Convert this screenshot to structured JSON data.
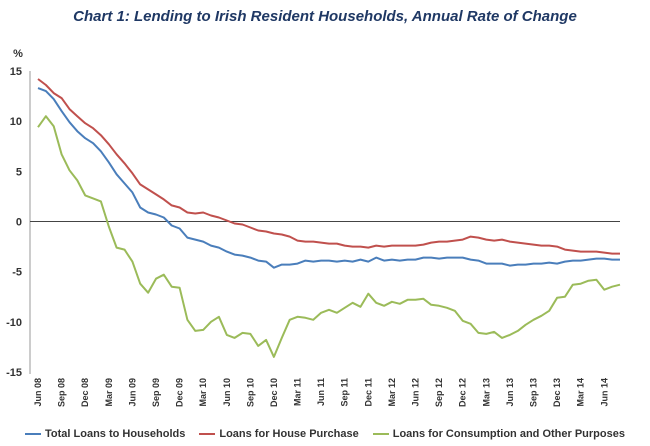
{
  "chart_data": {
    "type": "line",
    "title": "Chart 1: Lending to Irish Resident Households, Annual Rate of Change",
    "ylabel": "%",
    "xlabel": "",
    "ylim": [
      -15,
      15
    ],
    "yticks": [
      15,
      10,
      5,
      0,
      -5,
      -10,
      -15
    ],
    "grid": false,
    "legend_position": "bottom",
    "x_tick_labels": [
      "Jun 08",
      "Sep 08",
      "Dec 08",
      "Mar 09",
      "Jun 09",
      "Sep 09",
      "Dec 09",
      "Mar 10",
      "Jun 10",
      "Sep 10",
      "Dec 10",
      "Mar 11",
      "Jun 11",
      "Sep 11",
      "Dec 11",
      "Mar 12",
      "Jun 12",
      "Sep 12",
      "Dec 12",
      "Mar 13",
      "Jun 13",
      "Sep 13",
      "Dec 13",
      "Mar 14",
      "Jun 14"
    ],
    "series": [
      {
        "name": "Total Loans to Households",
        "color": "#4a7ebb",
        "values": [
          13.3,
          13.0,
          12.2,
          11.0,
          9.9,
          9.0,
          8.3,
          7.8,
          7.0,
          5.9,
          4.7,
          3.8,
          2.9,
          1.4,
          0.9,
          0.7,
          0.4,
          -0.4,
          -0.7,
          -1.6,
          -1.8,
          -2.0,
          -2.4,
          -2.6,
          -3.0,
          -3.3,
          -3.4,
          -3.6,
          -3.9,
          -4.0,
          -4.6,
          -4.3,
          -4.3,
          -4.2,
          -3.9,
          -4.0,
          -3.9,
          -3.9,
          -4.0,
          -3.9,
          -4.0,
          -3.8,
          -4.0,
          -3.6,
          -3.9,
          -3.8,
          -3.9,
          -3.8,
          -3.8,
          -3.6,
          -3.6,
          -3.7,
          -3.6,
          -3.6,
          -3.6,
          -3.8,
          -3.9,
          -4.2,
          -4.2,
          -4.2,
          -4.4,
          -4.3,
          -4.3,
          -4.2,
          -4.2,
          -4.1,
          -4.2,
          -4.0,
          -3.9,
          -3.9,
          -3.8,
          -3.7,
          -3.7,
          -3.8,
          -3.8
        ]
      },
      {
        "name": "Loans for House Purchase",
        "color": "#c0504d",
        "values": [
          14.2,
          13.6,
          12.8,
          12.3,
          11.2,
          10.5,
          9.8,
          9.3,
          8.6,
          7.7,
          6.7,
          5.8,
          4.8,
          3.7,
          3.2,
          2.7,
          2.2,
          1.6,
          1.4,
          0.9,
          0.8,
          0.9,
          0.6,
          0.4,
          0.1,
          -0.2,
          -0.3,
          -0.6,
          -0.9,
          -1.0,
          -1.2,
          -1.3,
          -1.5,
          -1.9,
          -2.0,
          -2.0,
          -2.1,
          -2.2,
          -2.2,
          -2.4,
          -2.5,
          -2.5,
          -2.6,
          -2.4,
          -2.5,
          -2.4,
          -2.4,
          -2.4,
          -2.4,
          -2.3,
          -2.1,
          -2.0,
          -2.0,
          -1.9,
          -1.8,
          -1.5,
          -1.6,
          -1.8,
          -1.9,
          -1.8,
          -2.0,
          -2.1,
          -2.2,
          -2.3,
          -2.4,
          -2.4,
          -2.5,
          -2.8,
          -2.9,
          -3.0,
          -3.0,
          -3.0,
          -3.1,
          -3.2,
          -3.2
        ]
      },
      {
        "name": "Loans for Consumption and Other Purposes",
        "color": "#9bbb59",
        "values": [
          9.4,
          10.5,
          9.5,
          6.7,
          5.1,
          4.1,
          2.6,
          2.3,
          2.0,
          -0.5,
          -2.6,
          -2.8,
          -4.0,
          -6.2,
          -7.1,
          -5.7,
          -5.3,
          -6.5,
          -6.6,
          -9.8,
          -10.9,
          -10.8,
          -10.0,
          -9.5,
          -11.3,
          -11.6,
          -11.1,
          -11.2,
          -12.4,
          -11.8,
          -13.5,
          -11.6,
          -9.8,
          -9.5,
          -9.6,
          -9.8,
          -9.1,
          -8.8,
          -9.1,
          -8.6,
          -8.1,
          -8.5,
          -7.2,
          -8.1,
          -8.4,
          -8.0,
          -8.2,
          -7.8,
          -7.8,
          -7.7,
          -8.3,
          -8.4,
          -8.6,
          -8.9,
          -9.9,
          -10.2,
          -11.1,
          -11.2,
          -11.0,
          -11.6,
          -11.3,
          -10.9,
          -10.3,
          -9.8,
          -9.4,
          -8.9,
          -7.6,
          -7.5,
          -6.3,
          -6.2,
          -5.9,
          -5.8,
          -6.8,
          -6.5,
          -6.3
        ]
      }
    ]
  }
}
